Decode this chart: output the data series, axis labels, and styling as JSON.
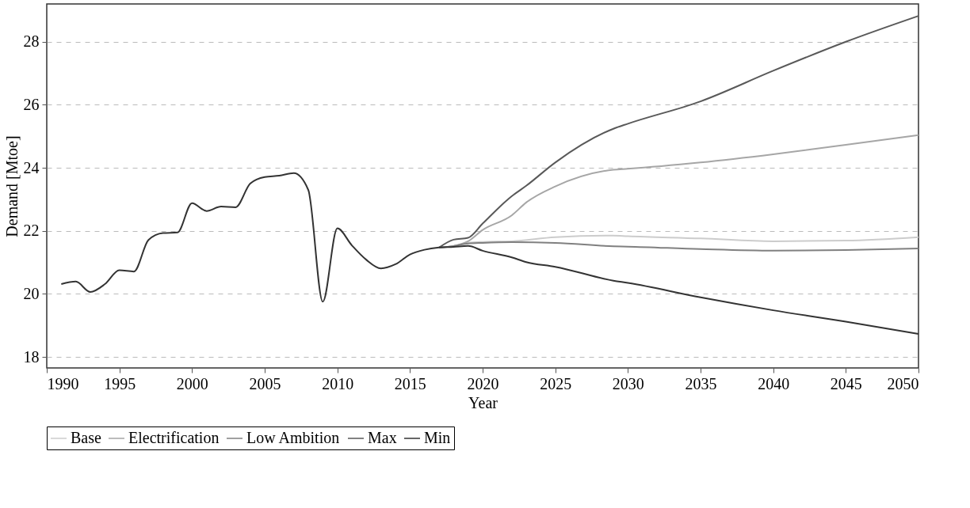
{
  "chart_data": {
    "type": "line",
    "xlabel": "Year",
    "ylabel": "Demand [Mtoe]",
    "xlim": [
      1990,
      2050
    ],
    "ylim": [
      17.65,
      29.2
    ],
    "xticks": [
      1990,
      1995,
      2000,
      2005,
      2010,
      2015,
      2020,
      2025,
      2030,
      2035,
      2040,
      2045,
      2050
    ],
    "yticks": [
      18,
      20,
      22,
      24,
      26,
      28
    ],
    "grid": "y",
    "legend": "bottom",
    "marker": "none",
    "line_style": "solid",
    "series": [
      {
        "name": "Base",
        "color": "#cccccc",
        "x": [
          2017,
          2018,
          2019,
          2020,
          2022,
          2025,
          2029,
          2030,
          2035,
          2040,
          2045,
          2050
        ],
        "values": [
          21.47,
          21.52,
          21.62,
          21.65,
          21.67,
          21.8,
          21.85,
          21.83,
          21.76,
          21.67,
          21.69,
          21.8
        ]
      },
      {
        "name": "Electrification",
        "color": "#a6a6a6",
        "x": [
          2017,
          2018,
          2019,
          2020,
          2022,
          2023,
          2025,
          2029,
          2030,
          2035,
          2040,
          2045,
          2050
        ],
        "values": [
          21.47,
          21.52,
          21.67,
          22.03,
          22.49,
          22.9,
          23.41,
          23.94,
          23.97,
          24.17,
          24.43,
          24.73,
          25.04
        ]
      },
      {
        "name": "Low Ambition",
        "color": "#808080",
        "x": [
          2017,
          2018,
          2019,
          2020,
          2022,
          2025,
          2029,
          2030,
          2035,
          2040,
          2045,
          2050
        ],
        "values": [
          21.47,
          21.52,
          21.6,
          21.62,
          21.64,
          21.62,
          21.51,
          21.5,
          21.42,
          21.37,
          21.39,
          21.44
        ]
      },
      {
        "name": "Max",
        "color": "#595959",
        "x": [
          2017,
          2018,
          2019,
          2020,
          2022,
          2023,
          2025,
          2029,
          2030,
          2035,
          2040,
          2045,
          2050
        ],
        "values": [
          21.47,
          21.72,
          21.78,
          22.23,
          23.1,
          23.43,
          24.17,
          25.24,
          25.4,
          26.11,
          27.08,
          28.0,
          28.82
        ]
      },
      {
        "name": "Min",
        "color": "#333333",
        "x": [
          1991,
          1992,
          1993,
          1994,
          1995,
          1996,
          1997,
          1998,
          1999,
          2000,
          2001,
          2002,
          2003,
          2004,
          2005,
          2006,
          2007,
          2008,
          2009,
          2010,
          2011,
          2012,
          2013,
          2014,
          2015,
          2016,
          2017,
          2018,
          2019,
          2020,
          2022,
          2023,
          2025,
          2029,
          2030,
          2035,
          2040,
          2045,
          2050
        ],
        "values": [
          20.31,
          20.39,
          20.06,
          20.31,
          20.75,
          20.71,
          21.71,
          21.93,
          21.95,
          22.88,
          22.63,
          22.77,
          22.75,
          23.5,
          23.71,
          23.75,
          23.83,
          23.3,
          19.75,
          22.08,
          21.54,
          21.08,
          20.81,
          20.94,
          21.25,
          21.4,
          21.47,
          21.49,
          21.52,
          21.37,
          21.16,
          21.01,
          20.86,
          20.42,
          20.35,
          19.89,
          19.48,
          19.12,
          18.73
        ]
      }
    ]
  }
}
